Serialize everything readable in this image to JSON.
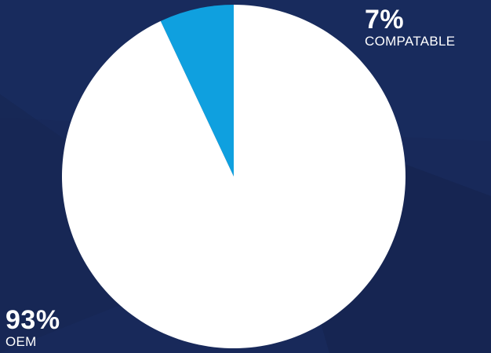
{
  "colors": {
    "background": "#18295a",
    "background_shade": "#15244f",
    "oem": "#ffffff",
    "compatable": "#0fa0df"
  },
  "chart_data": {
    "type": "pie",
    "title": "",
    "slices": [
      {
        "label": "COMPATABLE",
        "value": 7,
        "display": "7%",
        "color": "#0fa0df"
      },
      {
        "label": "OEM",
        "value": 93,
        "display": "93%",
        "color": "#ffffff"
      }
    ],
    "start_angle_deg": 0,
    "direction": "counterclockwise-from-top"
  }
}
